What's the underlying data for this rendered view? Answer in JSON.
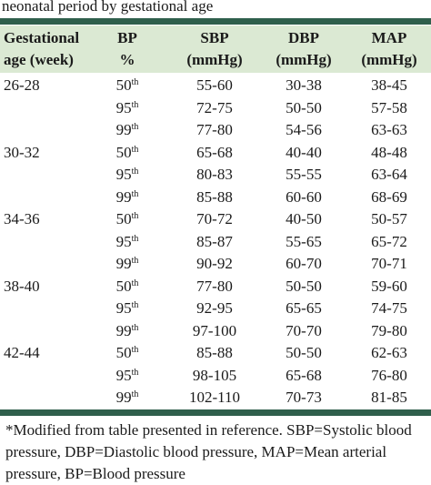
{
  "title": "neonatal period by gestational age",
  "header": {
    "age": [
      "Gestational",
      "age (week)"
    ],
    "bp": [
      "BP",
      "%"
    ],
    "sbp": [
      "SBP",
      "(mmHg)"
    ],
    "dbp": [
      "DBP",
      "(mmHg)"
    ],
    "map": [
      "MAP",
      "(mmHg)"
    ]
  },
  "groups": [
    {
      "age": "26-28",
      "rows": [
        {
          "bp": "50",
          "bp_suffix": "th",
          "sbp": "55-60",
          "dbp": "30-38",
          "map": "38-45"
        },
        {
          "bp": "95",
          "bp_suffix": "th",
          "sbp": "72-75",
          "dbp": "50-50",
          "map": "57-58"
        },
        {
          "bp": "99",
          "bp_suffix": "th",
          "sbp": "77-80",
          "dbp": "54-56",
          "map": "63-63"
        }
      ]
    },
    {
      "age": "30-32",
      "rows": [
        {
          "bp": "50",
          "bp_suffix": "th",
          "sbp": "65-68",
          "dbp": "40-40",
          "map": "48-48"
        },
        {
          "bp": "95",
          "bp_suffix": "th",
          "sbp": "80-83",
          "dbp": "55-55",
          "map": "63-64"
        },
        {
          "bp": "99",
          "bp_suffix": "th",
          "sbp": "85-88",
          "dbp": "60-60",
          "map": "68-69"
        }
      ]
    },
    {
      "age": "34-36",
      "rows": [
        {
          "bp": "50",
          "bp_suffix": "th",
          "sbp": "70-72",
          "dbp": "40-50",
          "map": "50-57"
        },
        {
          "bp": "95",
          "bp_suffix": "th",
          "sbp": "85-87",
          "dbp": "55-65",
          "map": "65-72"
        },
        {
          "bp": "99",
          "bp_suffix": "th",
          "sbp": "90-92",
          "dbp": "60-70",
          "map": "70-71"
        }
      ]
    },
    {
      "age": "38-40",
      "rows": [
        {
          "bp": "50",
          "bp_suffix": "th",
          "sbp": "77-80",
          "dbp": "50-50",
          "map": "59-60"
        },
        {
          "bp": "95",
          "bp_suffix": "th",
          "sbp": "92-95",
          "dbp": "65-65",
          "map": "74-75"
        },
        {
          "bp": "99",
          "bp_suffix": "th",
          "sbp": "97-100",
          "dbp": "70-70",
          "map": "79-80"
        }
      ]
    },
    {
      "age": "42-44",
      "rows": [
        {
          "bp": "50",
          "bp_suffix": "th",
          "sbp": "85-88",
          "dbp": "50-50",
          "map": "62-63"
        },
        {
          "bp": "95",
          "bp_suffix": "th",
          "sbp": "98-105",
          "dbp": "65-68",
          "map": "76-80"
        },
        {
          "bp": "99",
          "bp_suffix": "th",
          "sbp": "102-110",
          "dbp": "70-73",
          "map": "81-85"
        }
      ]
    }
  ],
  "footnote": "*Modified from table presented in reference. SBP=Systolic blood pressure, DBP=Diastolic blood pressure, MAP=Mean arterial pressure, BP=Blood pressure"
}
